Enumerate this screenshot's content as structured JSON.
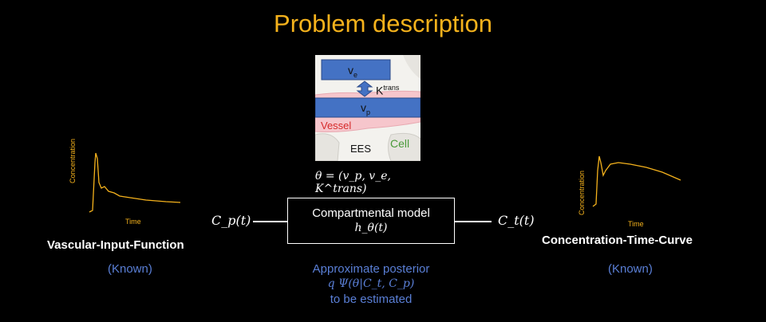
{
  "title": "Problem description",
  "schematic": {
    "ve_sub": "e",
    "ve_main": "v",
    "ktrans_main": "K",
    "ktrans_sup": "trans",
    "vp_main": "v",
    "vp_sub": "p",
    "vessel": "Vessel",
    "ees": "EES",
    "cell": "Cell"
  },
  "theta_formula": "θ = (v_p, v_e, K^trans)",
  "left": {
    "input_symbol": "C_p(t)",
    "label": "Vascular-Input-Function",
    "status": "(Known)",
    "ylabel": "Concentration",
    "xlabel": "Time"
  },
  "right": {
    "output_symbol": "C_t(t)",
    "label": "Concentration-Time-Curve",
    "status": "(Known)",
    "ylabel": "Concentration",
    "xlabel": "Time"
  },
  "model": {
    "title": "Compartmental model",
    "function": "h_θ(t)"
  },
  "posterior": {
    "line1": "Approximate posterior",
    "line2": "q Ψ(θ|C_t, C_p)",
    "line3": "to be estimated"
  },
  "colors": {
    "title": "#f5b21c",
    "curve": "#f5b21c",
    "known": "#5a7fd6",
    "compartment": "#4472c4",
    "vessel": "#f6c6cc",
    "vessel_text": "#d62a2a",
    "cell_text": "#4a9a3a"
  }
}
